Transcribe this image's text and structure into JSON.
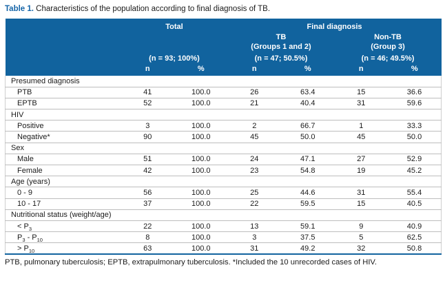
{
  "title": {
    "prefix": "Table 1.",
    "text": " Characteristics of the population according to final diagnosis of TB."
  },
  "table": {
    "header": {
      "group_total": "Total",
      "group_final": "Final diagnosis",
      "tb_line1": "TB",
      "tb_line2": "(Groups 1 and 2)",
      "nontb_line1": "Non-TB",
      "nontb_line2": "(Group 3)",
      "total_n": "(n = 93; 100%)",
      "tb_n": "(n = 47; 50.5%)",
      "nontb_n": "(n = 46; 49.5%)",
      "col_n": "n",
      "col_pct": "%"
    },
    "rows": [
      {
        "type": "section",
        "label": "Presumed diagnosis"
      },
      {
        "type": "data",
        "label": "PTB",
        "values": [
          "41",
          "100.0",
          "26",
          "63.4",
          "15",
          "36.6"
        ]
      },
      {
        "type": "data",
        "label": "EPTB",
        "values": [
          "52",
          "100.0",
          "21",
          "40.4",
          "31",
          "59.6"
        ]
      },
      {
        "type": "section",
        "label": "HIV"
      },
      {
        "type": "data",
        "label": "Positive",
        "values": [
          "3",
          "100.0",
          "2",
          "66.7",
          "1",
          "33.3"
        ]
      },
      {
        "type": "data",
        "label": "Negative*",
        "values": [
          "90",
          "100.0",
          "45",
          "50.0",
          "45",
          "50.0"
        ]
      },
      {
        "type": "section",
        "label": "Sex"
      },
      {
        "type": "data",
        "label": "Male",
        "values": [
          "51",
          "100.0",
          "24",
          "47.1",
          "27",
          "52.9"
        ]
      },
      {
        "type": "data",
        "label": "Female",
        "values": [
          "42",
          "100.0",
          "23",
          "54.8",
          "19",
          "45.2"
        ]
      },
      {
        "type": "section",
        "label": "Age (years)"
      },
      {
        "type": "data",
        "label": "0 - 9",
        "values": [
          "56",
          "100.0",
          "25",
          "44.6",
          "31",
          "55.4"
        ]
      },
      {
        "type": "data",
        "label": "10 - 17",
        "values": [
          "37",
          "100.0",
          "22",
          "59.5",
          "15",
          "40.5"
        ]
      },
      {
        "type": "section",
        "label": "Nutritional status (weight/age)"
      },
      {
        "type": "data",
        "label_segments": [
          {
            "t": "< P"
          },
          {
            "t": "3",
            "sub": true
          }
        ],
        "values": [
          "22",
          "100.0",
          "13",
          "59.1",
          "9",
          "40.9"
        ]
      },
      {
        "type": "data",
        "label_segments": [
          {
            "t": "P"
          },
          {
            "t": "3",
            "sub": true
          },
          {
            "t": " - P"
          },
          {
            "t": "10",
            "sub": true
          }
        ],
        "values": [
          "8",
          "100.0",
          "3",
          "37.5",
          "5",
          "62.5"
        ]
      },
      {
        "type": "data",
        "label_segments": [
          {
            "t": "> P"
          },
          {
            "t": "10",
            "sub": true
          }
        ],
        "values": [
          "63",
          "100.0",
          "31",
          "49.2",
          "32",
          "50.8"
        ]
      }
    ]
  },
  "footnote": "PTB, pulmonary tuberculosis; EPTB, extrapulmonary tuberculosis. *Included the 10 unrecorded cases of HIV.",
  "colors": {
    "header_bg": "#11639E",
    "title_accent": "#1565A8",
    "grid": "#bdbdbd"
  }
}
